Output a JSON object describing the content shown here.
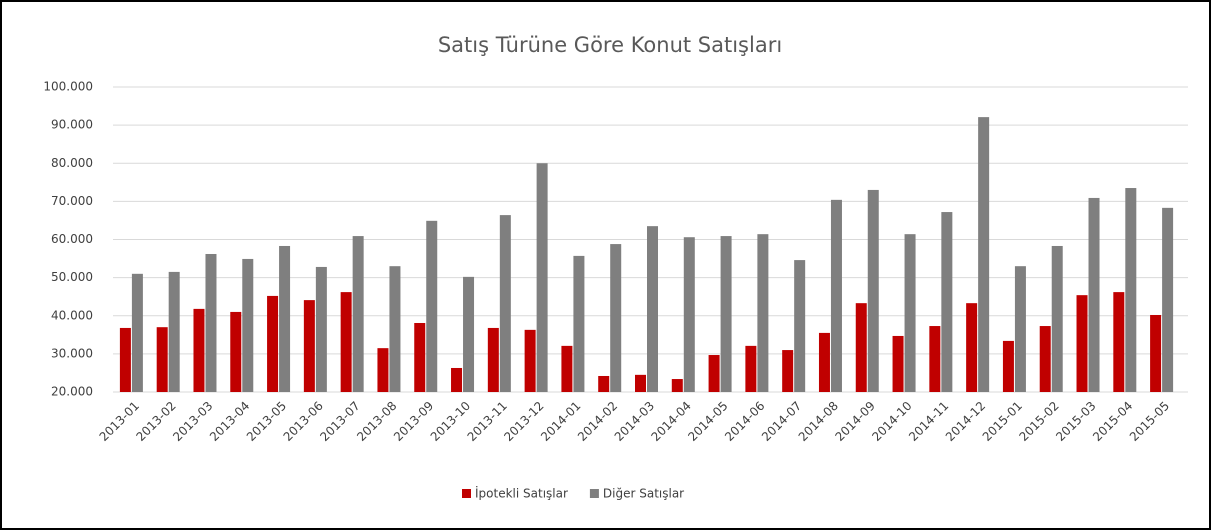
{
  "chart_data": {
    "type": "bar",
    "title": "Satış Türüne Göre Konut Satışları",
    "categories": [
      "2013-01",
      "2013-02",
      "2013-03",
      "2013-04",
      "2013-05",
      "2013-06",
      "2013-07",
      "2013-08",
      "2013-09",
      "2013-10",
      "2013-11",
      "2013-12",
      "2014-01",
      "2014-02",
      "2014-03",
      "2014-04",
      "2014-05",
      "2014-06",
      "2014-07",
      "2014-08",
      "2014-09",
      "2014-10",
      "2014-11",
      "2014-12",
      "2015-01",
      "2015-02",
      "2015-03",
      "2015-04",
      "2015-05"
    ],
    "series": [
      {
        "name": "İpotekli Satışlar",
        "color": "#c00000",
        "values": [
          36800,
          37000,
          41800,
          41000,
          45200,
          44100,
          46200,
          31500,
          38100,
          26300,
          36800,
          36300,
          32100,
          24200,
          24500,
          23400,
          29700,
          32100,
          31000,
          35500,
          43300,
          34700,
          37300,
          43300,
          33400,
          37300,
          45400,
          46200,
          40200
        ]
      },
      {
        "name": "Diğer Satışlar",
        "color": "#7f7f7f",
        "values": [
          51000,
          51500,
          56200,
          54900,
          58300,
          52800,
          60900,
          53000,
          64900,
          50200,
          66400,
          80000,
          55700,
          58800,
          63500,
          60600,
          60900,
          61400,
          54600,
          70400,
          73000,
          61400,
          67200,
          92100,
          53000,
          58300,
          70900,
          73500,
          68300
        ]
      }
    ],
    "ylim": [
      20000,
      100000
    ],
    "yticks": [
      {
        "value": 20000,
        "label": "20.000"
      },
      {
        "value": 30000,
        "label": "30.000"
      },
      {
        "value": 40000,
        "label": "40.000"
      },
      {
        "value": 50000,
        "label": "50.000"
      },
      {
        "value": 60000,
        "label": "60.000"
      },
      {
        "value": 70000,
        "label": "70.000"
      },
      {
        "value": 80000,
        "label": "80.000"
      },
      {
        "value": 90000,
        "label": "90.000"
      },
      {
        "value": 100000,
        "label": "100.000"
      }
    ],
    "grid": true,
    "legend": "bottom"
  }
}
